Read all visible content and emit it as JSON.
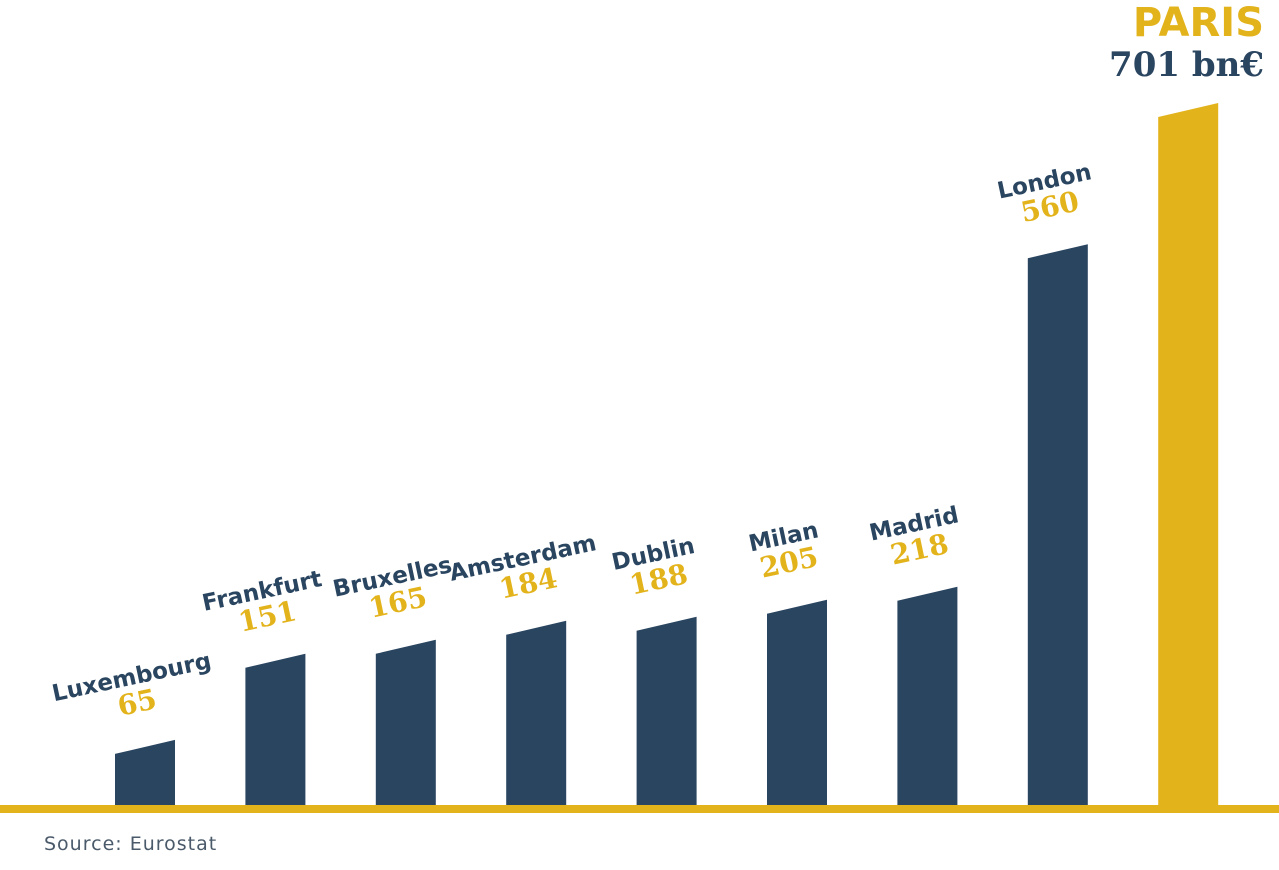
{
  "chart_data": {
    "type": "bar",
    "categories": [
      "Luxembourg",
      "Frankfurt",
      "Bruxelles",
      "Amsterdam",
      "Dublin",
      "Milan",
      "Madrid",
      "London",
      "PARIS"
    ],
    "values": [
      65,
      151,
      165,
      184,
      188,
      205,
      218,
      560,
      701
    ],
    "value_labels": [
      "65",
      "151",
      "165",
      "184",
      "188",
      "205",
      "218",
      "560",
      "701 bn€"
    ],
    "colors": [
      "#2a4560",
      "#2a4560",
      "#2a4560",
      "#2a4560",
      "#2a4560",
      "#2a4560",
      "#2a4560",
      "#2a4560",
      "#e3b31c"
    ],
    "label_color": "#e3b31c",
    "source": "Source: Eurostat"
  }
}
